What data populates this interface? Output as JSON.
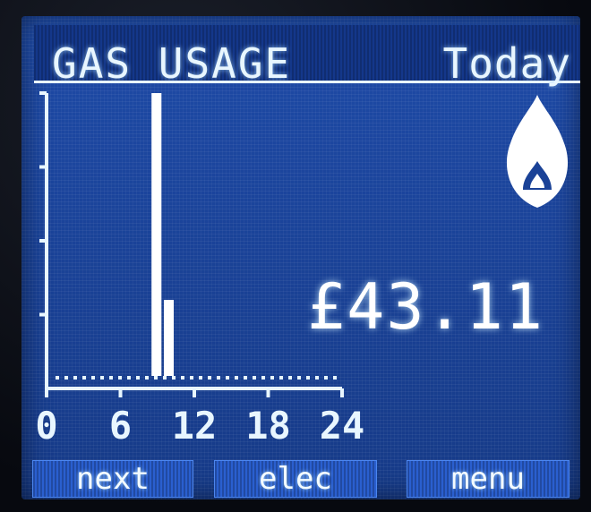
{
  "header": {
    "title": "GAS USAGE",
    "period": "Today"
  },
  "cost": {
    "value": "£43.11"
  },
  "softkeys": {
    "next_label": "next",
    "elec_label": "elec",
    "menu_label": "menu"
  },
  "icons": {
    "fuel": "flame-icon"
  },
  "colors": {
    "screen_bg": "#1a4297",
    "foreground": "#e8f6ff",
    "key_bg": "#2a5fcf"
  },
  "chart_data": {
    "type": "bar",
    "x_ticks": [
      "0",
      "6",
      "12",
      "18",
      "24"
    ],
    "x": [
      9,
      10
    ],
    "values": [
      100,
      30
    ],
    "xlim": [
      0,
      24
    ],
    "ylim": [
      0,
      100
    ],
    "title": "",
    "xlabel": "",
    "ylabel": ""
  }
}
